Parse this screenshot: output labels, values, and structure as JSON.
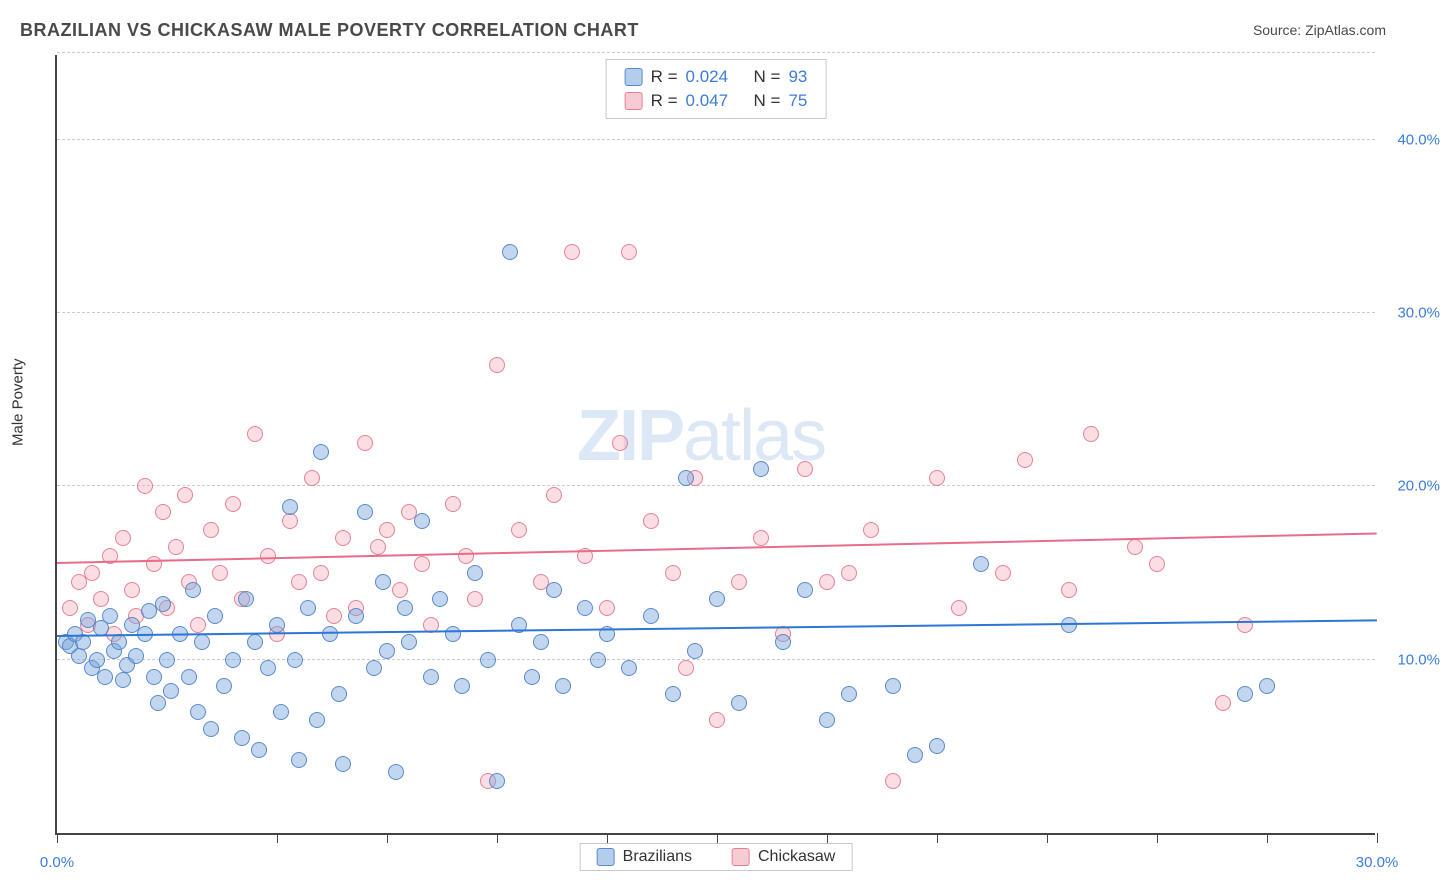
{
  "title": "BRAZILIAN VS CHICKASAW MALE POVERTY CORRELATION CHART",
  "source_label": "Source: ZipAtlas.com",
  "ylabel": "Male Poverty",
  "watermark_a": "ZIP",
  "watermark_b": "atlas",
  "chart": {
    "type": "scatter",
    "xlim": [
      0,
      30
    ],
    "ylim": [
      0,
      45
    ],
    "x_ticks": [
      0,
      5,
      7.5,
      10,
      12.5,
      15,
      17.5,
      20,
      22.5,
      25,
      27.5,
      30
    ],
    "x_tick_labels": {
      "0": "0.0%",
      "30": "30.0%"
    },
    "y_gridlines": [
      10,
      20,
      30,
      40,
      45
    ],
    "y_ticks": [
      10,
      20,
      30,
      40
    ],
    "y_tick_labels": {
      "10": "10.0%",
      "20": "20.0%",
      "30": "30.0%",
      "40": "40.0%"
    },
    "background_color": "#ffffff",
    "grid_color": "#cccccc",
    "axis_color": "#444444",
    "label_color": "#3b7dd8",
    "series": {
      "blue": {
        "name": "Brazilians",
        "color_fill": "rgba(120,164,220,0.45)",
        "color_stroke": "rgba(80,130,200,0.9)",
        "marker_radius": 8,
        "trend": {
          "y_start": 11.3,
          "y_end": 12.2
        },
        "R_label": "R =",
        "R": "0.024",
        "N_label": "N =",
        "N": "93",
        "points": [
          [
            0.2,
            11.0
          ],
          [
            0.3,
            10.8
          ],
          [
            0.4,
            11.5
          ],
          [
            0.5,
            10.2
          ],
          [
            0.6,
            11.0
          ],
          [
            0.7,
            12.3
          ],
          [
            0.8,
            9.5
          ],
          [
            0.9,
            10.0
          ],
          [
            1.0,
            11.8
          ],
          [
            1.1,
            9.0
          ],
          [
            1.2,
            12.5
          ],
          [
            1.3,
            10.5
          ],
          [
            1.4,
            11.0
          ],
          [
            1.5,
            8.8
          ],
          [
            1.6,
            9.7
          ],
          [
            1.7,
            12.0
          ],
          [
            1.8,
            10.2
          ],
          [
            2.0,
            11.5
          ],
          [
            2.1,
            12.8
          ],
          [
            2.2,
            9.0
          ],
          [
            2.3,
            7.5
          ],
          [
            2.4,
            13.2
          ],
          [
            2.5,
            10.0
          ],
          [
            2.6,
            8.2
          ],
          [
            2.8,
            11.5
          ],
          [
            3.0,
            9.0
          ],
          [
            3.1,
            14.0
          ],
          [
            3.2,
            7.0
          ],
          [
            3.3,
            11.0
          ],
          [
            3.5,
            6.0
          ],
          [
            3.6,
            12.5
          ],
          [
            3.8,
            8.5
          ],
          [
            4.0,
            10.0
          ],
          [
            4.2,
            5.5
          ],
          [
            4.3,
            13.5
          ],
          [
            4.5,
            11.0
          ],
          [
            4.6,
            4.8
          ],
          [
            4.8,
            9.5
          ],
          [
            5.0,
            12.0
          ],
          [
            5.1,
            7.0
          ],
          [
            5.3,
            18.8
          ],
          [
            5.4,
            10.0
          ],
          [
            5.5,
            4.2
          ],
          [
            5.7,
            13.0
          ],
          [
            5.9,
            6.5
          ],
          [
            6.0,
            22.0
          ],
          [
            6.2,
            11.5
          ],
          [
            6.4,
            8.0
          ],
          [
            6.5,
            4.0
          ],
          [
            6.8,
            12.5
          ],
          [
            7.0,
            18.5
          ],
          [
            7.2,
            9.5
          ],
          [
            7.4,
            14.5
          ],
          [
            7.5,
            10.5
          ],
          [
            7.7,
            3.5
          ],
          [
            7.9,
            13.0
          ],
          [
            8.0,
            11.0
          ],
          [
            8.3,
            18.0
          ],
          [
            8.5,
            9.0
          ],
          [
            8.7,
            13.5
          ],
          [
            9.0,
            11.5
          ],
          [
            9.2,
            8.5
          ],
          [
            9.5,
            15.0
          ],
          [
            9.8,
            10.0
          ],
          [
            10.0,
            3.0
          ],
          [
            10.3,
            33.5
          ],
          [
            10.5,
            12.0
          ],
          [
            10.8,
            9.0
          ],
          [
            11.0,
            11.0
          ],
          [
            11.3,
            14.0
          ],
          [
            11.5,
            8.5
          ],
          [
            12.0,
            13.0
          ],
          [
            12.3,
            10.0
          ],
          [
            12.5,
            11.5
          ],
          [
            13.0,
            9.5
          ],
          [
            13.5,
            12.5
          ],
          [
            14.0,
            8.0
          ],
          [
            14.3,
            20.5
          ],
          [
            14.5,
            10.5
          ],
          [
            15.0,
            13.5
          ],
          [
            15.5,
            7.5
          ],
          [
            16.0,
            21.0
          ],
          [
            16.5,
            11.0
          ],
          [
            17.0,
            14.0
          ],
          [
            17.5,
            6.5
          ],
          [
            18.0,
            8.0
          ],
          [
            19.0,
            8.5
          ],
          [
            19.5,
            4.5
          ],
          [
            20.0,
            5.0
          ],
          [
            21.0,
            15.5
          ],
          [
            23.0,
            12.0
          ],
          [
            27.0,
            8.0
          ],
          [
            27.5,
            8.5
          ]
        ]
      },
      "pink": {
        "name": "Chickasaw",
        "color_fill": "rgba(240,160,175,0.35)",
        "color_stroke": "rgba(230,120,140,0.9)",
        "marker_radius": 8,
        "trend": {
          "y_start": 15.5,
          "y_end": 17.2
        },
        "R_label": "R =",
        "R": "0.047",
        "N_label": "N =",
        "N": "75",
        "points": [
          [
            0.3,
            13.0
          ],
          [
            0.5,
            14.5
          ],
          [
            0.7,
            12.0
          ],
          [
            0.8,
            15.0
          ],
          [
            1.0,
            13.5
          ],
          [
            1.2,
            16.0
          ],
          [
            1.3,
            11.5
          ],
          [
            1.5,
            17.0
          ],
          [
            1.7,
            14.0
          ],
          [
            1.8,
            12.5
          ],
          [
            2.0,
            20.0
          ],
          [
            2.2,
            15.5
          ],
          [
            2.4,
            18.5
          ],
          [
            2.5,
            13.0
          ],
          [
            2.7,
            16.5
          ],
          [
            2.9,
            19.5
          ],
          [
            3.0,
            14.5
          ],
          [
            3.2,
            12.0
          ],
          [
            3.5,
            17.5
          ],
          [
            3.7,
            15.0
          ],
          [
            4.0,
            19.0
          ],
          [
            4.2,
            13.5
          ],
          [
            4.5,
            23.0
          ],
          [
            4.8,
            16.0
          ],
          [
            5.0,
            11.5
          ],
          [
            5.3,
            18.0
          ],
          [
            5.5,
            14.5
          ],
          [
            5.8,
            20.5
          ],
          [
            6.0,
            15.0
          ],
          [
            6.3,
            12.5
          ],
          [
            6.5,
            17.0
          ],
          [
            6.8,
            13.0
          ],
          [
            7.0,
            22.5
          ],
          [
            7.3,
            16.5
          ],
          [
            7.5,
            17.5
          ],
          [
            7.8,
            14.0
          ],
          [
            8.0,
            18.5
          ],
          [
            8.3,
            15.5
          ],
          [
            8.5,
            12.0
          ],
          [
            9.0,
            19.0
          ],
          [
            9.3,
            16.0
          ],
          [
            9.5,
            13.5
          ],
          [
            9.8,
            3.0
          ],
          [
            10.0,
            27.0
          ],
          [
            10.5,
            17.5
          ],
          [
            11.0,
            14.5
          ],
          [
            11.3,
            19.5
          ],
          [
            11.7,
            33.5
          ],
          [
            12.0,
            16.0
          ],
          [
            12.5,
            13.0
          ],
          [
            12.8,
            22.5
          ],
          [
            13.0,
            33.5
          ],
          [
            13.5,
            18.0
          ],
          [
            14.0,
            15.0
          ],
          [
            14.3,
            9.5
          ],
          [
            14.5,
            20.5
          ],
          [
            15.0,
            6.5
          ],
          [
            15.5,
            14.5
          ],
          [
            16.0,
            17.0
          ],
          [
            16.5,
            11.5
          ],
          [
            17.0,
            21.0
          ],
          [
            17.5,
            14.5
          ],
          [
            18.0,
            15.0
          ],
          [
            18.5,
            17.5
          ],
          [
            19.0,
            3.0
          ],
          [
            20.0,
            20.5
          ],
          [
            20.5,
            13.0
          ],
          [
            21.5,
            15.0
          ],
          [
            22.0,
            21.5
          ],
          [
            23.0,
            14.0
          ],
          [
            23.5,
            23.0
          ],
          [
            24.5,
            16.5
          ],
          [
            25.0,
            15.5
          ],
          [
            26.5,
            7.5
          ],
          [
            27.0,
            12.0
          ]
        ]
      }
    },
    "legend": {
      "items": [
        "blue",
        "pink"
      ]
    }
  }
}
